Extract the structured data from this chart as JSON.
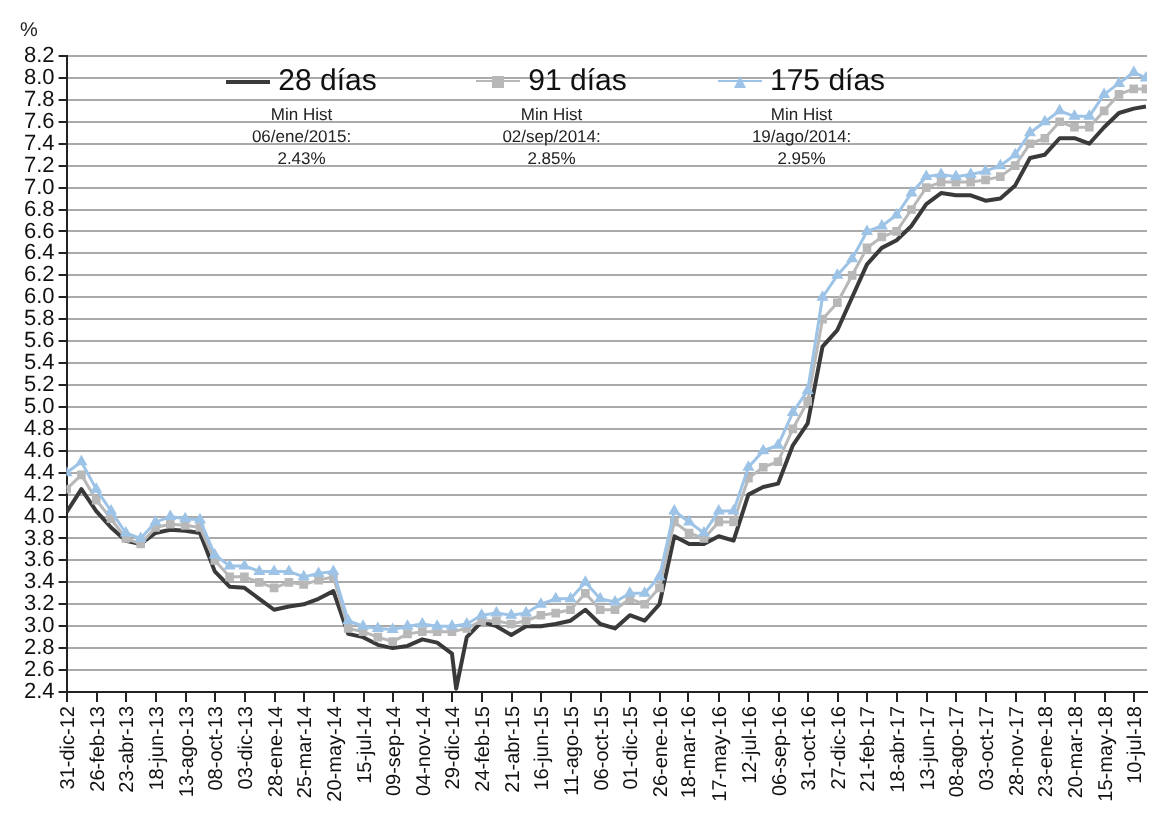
{
  "chart_data": {
    "type": "line",
    "ylabel": "%",
    "x": [
      "2012-12-31",
      "2013-01-28",
      "2013-02-25",
      "2013-03-25",
      "2013-04-22",
      "2013-05-20",
      "2013-06-17",
      "2013-07-15",
      "2013-08-12",
      "2013-09-09",
      "2013-10-07",
      "2013-11-04",
      "2013-12-02",
      "2013-12-30",
      "2014-01-27",
      "2014-02-24",
      "2014-03-24",
      "2014-04-21",
      "2014-05-19",
      "2014-06-16",
      "2014-07-14",
      "2014-08-11",
      "2014-09-08",
      "2014-10-06",
      "2014-11-03",
      "2014-12-01",
      "2014-12-29",
      "2015-01-26",
      "2015-02-23",
      "2015-03-23",
      "2015-04-20",
      "2015-05-18",
      "2015-06-15",
      "2015-07-13",
      "2015-08-10",
      "2015-09-07",
      "2015-10-05",
      "2015-11-02",
      "2015-11-30",
      "2015-12-28",
      "2016-01-25",
      "2016-02-22",
      "2016-03-21",
      "2016-04-18",
      "2016-05-16",
      "2016-06-13",
      "2016-07-11",
      "2016-08-08",
      "2016-09-05",
      "2016-10-03",
      "2016-10-31",
      "2016-11-28",
      "2016-12-26",
      "2017-01-23",
      "2017-02-20",
      "2017-03-20",
      "2017-04-17",
      "2017-05-15",
      "2017-06-12",
      "2017-07-10",
      "2017-08-07",
      "2017-09-04",
      "2017-10-02",
      "2017-10-30",
      "2017-11-27",
      "2017-12-25",
      "2018-01-22",
      "2018-02-19",
      "2018-03-19",
      "2018-04-16",
      "2018-05-14",
      "2018-06-11",
      "2018-07-09",
      "2018-08-01"
    ],
    "series": [
      {
        "name": "28 días",
        "color": "#3a3a3a",
        "marker": "none",
        "x": [
          "2012-12-31",
          "2013-01-28",
          "2013-02-25",
          "2013-03-25",
          "2013-04-22",
          "2013-05-20",
          "2013-06-17",
          "2013-07-15",
          "2013-08-12",
          "2013-09-09",
          "2013-10-07",
          "2013-11-04",
          "2013-12-02",
          "2013-12-30",
          "2014-01-27",
          "2014-02-24",
          "2014-03-24",
          "2014-04-21",
          "2014-05-19",
          "2014-06-16",
          "2014-07-14",
          "2014-08-11",
          "2014-09-08",
          "2014-10-06",
          "2014-11-03",
          "2014-12-01",
          "2014-12-29",
          "2015-01-06",
          "2015-01-26",
          "2015-02-23",
          "2015-03-23",
          "2015-04-20",
          "2015-05-18",
          "2015-06-15",
          "2015-07-13",
          "2015-08-10",
          "2015-09-07",
          "2015-10-05",
          "2015-11-02",
          "2015-11-30",
          "2015-12-28",
          "2016-01-25",
          "2016-02-22",
          "2016-03-21",
          "2016-04-18",
          "2016-05-16",
          "2016-06-13",
          "2016-07-11",
          "2016-08-08",
          "2016-09-05",
          "2016-10-03",
          "2016-10-31",
          "2016-11-28",
          "2016-12-26",
          "2017-01-23",
          "2017-02-20",
          "2017-03-20",
          "2017-04-17",
          "2017-05-15",
          "2017-06-12",
          "2017-07-10",
          "2017-08-07",
          "2017-09-04",
          "2017-10-02",
          "2017-10-30",
          "2017-11-27",
          "2017-12-25",
          "2018-01-22",
          "2018-02-19",
          "2018-03-19",
          "2018-04-16",
          "2018-05-14",
          "2018-06-11",
          "2018-07-09",
          "2018-08-01"
        ],
        "values": [
          4.04,
          4.25,
          4.05,
          3.9,
          3.78,
          3.75,
          3.85,
          3.88,
          3.87,
          3.85,
          3.5,
          3.36,
          3.35,
          3.25,
          3.15,
          3.18,
          3.2,
          3.25,
          3.32,
          2.93,
          2.9,
          2.83,
          2.8,
          2.82,
          2.88,
          2.85,
          2.75,
          2.43,
          2.9,
          3.04,
          3.0,
          2.92,
          3.0,
          3.0,
          3.02,
          3.05,
          3.15,
          3.02,
          2.98,
          3.1,
          3.05,
          3.2,
          3.82,
          3.75,
          3.75,
          3.82,
          3.78,
          4.2,
          4.27,
          4.3,
          4.65,
          4.85,
          5.55,
          5.7,
          6.0,
          6.3,
          6.45,
          6.52,
          6.65,
          6.85,
          6.95,
          6.93,
          6.93,
          6.88,
          6.9,
          7.02,
          7.27,
          7.3,
          7.45,
          7.45,
          7.4,
          7.55,
          7.68,
          7.72,
          7.74
        ]
      },
      {
        "name": "91 días",
        "color": "#b8b8b8",
        "marker": "square",
        "values": [
          4.25,
          4.38,
          4.15,
          3.98,
          3.8,
          3.75,
          3.9,
          3.93,
          3.92,
          3.9,
          3.6,
          3.45,
          3.45,
          3.4,
          3.35,
          3.4,
          3.38,
          3.42,
          3.45,
          2.98,
          2.95,
          2.9,
          2.86,
          2.93,
          2.95,
          2.95,
          2.95,
          2.98,
          3.05,
          3.05,
          3.02,
          3.05,
          3.1,
          3.12,
          3.15,
          3.3,
          3.15,
          3.15,
          3.25,
          3.2,
          3.35,
          3.95,
          3.85,
          3.8,
          3.95,
          3.95,
          4.35,
          4.45,
          4.5,
          4.8,
          5.05,
          5.8,
          5.95,
          6.2,
          6.45,
          6.55,
          6.6,
          6.8,
          7.0,
          7.05,
          7.05,
          7.05,
          7.07,
          7.1,
          7.2,
          7.4,
          7.45,
          7.6,
          7.55,
          7.55,
          7.7,
          7.85,
          7.9,
          7.9
        ]
      },
      {
        "name": "175 días",
        "color": "#9dc3e6",
        "marker": "triangle",
        "values": [
          4.4,
          4.5,
          4.25,
          4.05,
          3.85,
          3.8,
          3.95,
          4.0,
          3.98,
          3.97,
          3.65,
          3.55,
          3.55,
          3.5,
          3.5,
          3.5,
          3.45,
          3.48,
          3.5,
          3.05,
          3.0,
          2.98,
          2.97,
          3.0,
          3.02,
          3.0,
          3.0,
          3.02,
          3.1,
          3.12,
          3.1,
          3.12,
          3.2,
          3.25,
          3.25,
          3.4,
          3.25,
          3.22,
          3.3,
          3.3,
          3.45,
          4.05,
          3.95,
          3.85,
          4.05,
          4.05,
          4.45,
          4.6,
          4.65,
          4.95,
          5.15,
          6.0,
          6.2,
          6.35,
          6.6,
          6.65,
          6.75,
          6.95,
          7.1,
          7.12,
          7.1,
          7.12,
          7.15,
          7.2,
          7.3,
          7.5,
          7.6,
          7.7,
          7.65,
          7.65,
          7.85,
          7.95,
          8.05,
          8.0
        ]
      }
    ],
    "annotations": [
      "Min Hist\n06/ene/2015:\n2.43%",
      "Min Hist\n02/sep/2014:\n2.85%",
      "Min Hist\n19/ago/2014:\n2.95%"
    ],
    "xlim": [
      "2012-12-31",
      "2018-08-03"
    ],
    "xticks": [
      {
        "value": "2012-12-31",
        "label": "31-dic-12"
      },
      {
        "value": "2013-02-26",
        "label": "26-feb-13"
      },
      {
        "value": "2013-04-23",
        "label": "23-abr-13"
      },
      {
        "value": "2013-06-18",
        "label": "18-jun-13"
      },
      {
        "value": "2013-08-13",
        "label": "13-ago-13"
      },
      {
        "value": "2013-10-08",
        "label": "08-oct-13"
      },
      {
        "value": "2013-12-03",
        "label": "03-dic-13"
      },
      {
        "value": "2014-01-28",
        "label": "28-ene-14"
      },
      {
        "value": "2014-03-25",
        "label": "25-mar-14"
      },
      {
        "value": "2014-05-20",
        "label": "20-may-14"
      },
      {
        "value": "2014-07-15",
        "label": "15-jul-14"
      },
      {
        "value": "2014-09-09",
        "label": "09-sep-14"
      },
      {
        "value": "2014-11-04",
        "label": "04-nov-14"
      },
      {
        "value": "2014-12-29",
        "label": "29-dic-14"
      },
      {
        "value": "2015-02-24",
        "label": "24-feb-15"
      },
      {
        "value": "2015-04-21",
        "label": "21-abr-15"
      },
      {
        "value": "2015-06-16",
        "label": "16-jun-15"
      },
      {
        "value": "2015-08-11",
        "label": "11-ago-15"
      },
      {
        "value": "2015-10-06",
        "label": "06-oct-15"
      },
      {
        "value": "2015-12-01",
        "label": "01-dic-15"
      },
      {
        "value": "2016-01-26",
        "label": "26-ene-16"
      },
      {
        "value": "2016-03-18",
        "label": "18-mar-16"
      },
      {
        "value": "2016-05-17",
        "label": "17-may-16"
      },
      {
        "value": "2016-07-12",
        "label": "12-jul-16"
      },
      {
        "value": "2016-09-06",
        "label": "06-sep-16"
      },
      {
        "value": "2016-10-31",
        "label": "31-oct-16"
      },
      {
        "value": "2016-12-27",
        "label": "27-dic-16"
      },
      {
        "value": "2017-02-21",
        "label": "21-feb-17"
      },
      {
        "value": "2017-04-18",
        "label": "18-abr-17"
      },
      {
        "value": "2017-06-13",
        "label": "13-jun-17"
      },
      {
        "value": "2017-08-08",
        "label": "08-ago-17"
      },
      {
        "value": "2017-10-03",
        "label": "03-oct-17"
      },
      {
        "value": "2017-11-28",
        "label": "28-nov-17"
      },
      {
        "value": "2018-01-23",
        "label": "23-ene-18"
      },
      {
        "value": "2018-03-20",
        "label": "20-mar-18"
      },
      {
        "value": "2018-05-15",
        "label": "15-may-18"
      },
      {
        "value": "2018-07-10",
        "label": "10-jul-18"
      }
    ],
    "ylim": [
      2.4,
      8.2
    ],
    "yticks": [
      2.4,
      2.6,
      2.8,
      {
        "value": 3,
        "label": "3.0"
      },
      3.2,
      3.4,
      3.6,
      3.8,
      {
        "value": 4,
        "label": "4.0"
      },
      4.2,
      4.4,
      4.6,
      4.8,
      {
        "value": 5,
        "label": "5.0"
      },
      5.2,
      5.4,
      5.6,
      5.8,
      {
        "value": 6,
        "label": "6.0"
      },
      6.2,
      6.4,
      6.6,
      6.8,
      {
        "value": 7,
        "label": "7.0"
      },
      7.2,
      7.4,
      7.6,
      7.8,
      {
        "value": 8,
        "label": "8.0"
      },
      8.2
    ],
    "grid": "y",
    "legend": "top",
    "line_style": "solid"
  }
}
